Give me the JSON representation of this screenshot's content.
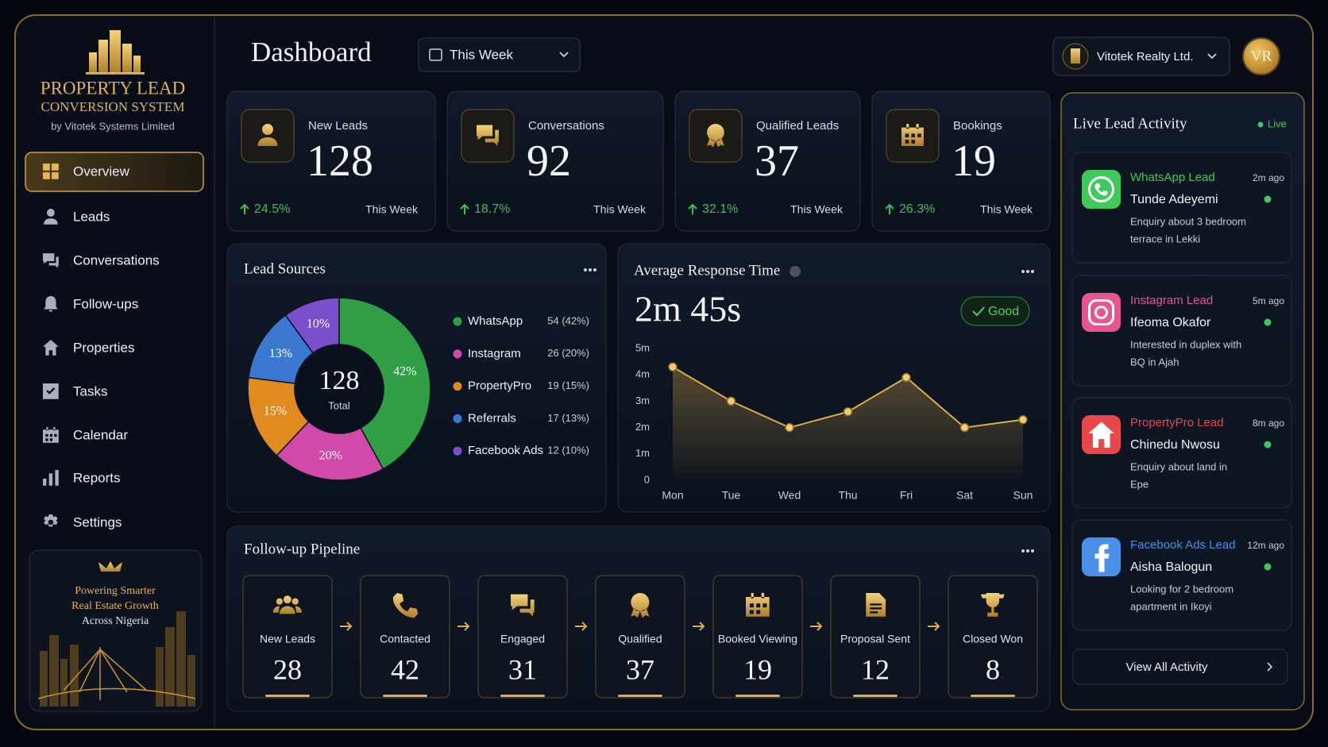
{
  "sidebar": {
    "brand": {
      "title": "PROPERTY LEAD",
      "subtitle": "CONVERSION SYSTEM",
      "byline": "by Vitotek Systems Limited"
    },
    "nav": [
      "Overview",
      "Leads",
      "Conversations",
      "Follow-ups",
      "Properties",
      "Tasks",
      "Calendar",
      "Reports",
      "Settings"
    ],
    "promo": [
      "Powering Smarter",
      "Real Estate Growth",
      "Across Nigeria"
    ]
  },
  "header": {
    "title": "Dashboard",
    "period": "This Week",
    "company": "Vitotek Realty Ltd.",
    "avatar": "VR"
  },
  "kpis": [
    {
      "label": "New Leads",
      "value": 128,
      "change": "24.5%",
      "period": "This Week"
    },
    {
      "label": "Conversations",
      "value": 92,
      "change": "18.7%",
      "period": "This Week"
    },
    {
      "label": "Qualified Leads",
      "value": 37,
      "change": "32.1%",
      "period": "This Week"
    },
    {
      "label": "Bookings",
      "value": 19,
      "change": "26.3%",
      "period": "This Week"
    }
  ],
  "chart_data": [
    {
      "type": "pie",
      "title": "Lead Sources",
      "categories": [
        "WhatsApp",
        "Instagram",
        "PropertyPro",
        "Referrals",
        "Facebook Ads"
      ],
      "values": [
        42,
        20,
        15,
        13,
        10
      ],
      "value_labels": [
        "42%",
        "20%",
        "15%",
        "13%",
        "10%"
      ],
      "legend_details": [
        "54 (42%)",
        "26 (20%)",
        "19 (15%)",
        "17 (13%)",
        "12 (10%)"
      ],
      "colors": [
        "#2f9e44",
        "#d14aa9",
        "#e08a1f",
        "#3b78d1",
        "#7b4fc9"
      ],
      "center_value": 128,
      "center_label": "Total"
    },
    {
      "type": "line",
      "title": "Average Response Time",
      "headline": "2m 45s",
      "status": "Good",
      "categories": [
        "Mon",
        "Tue",
        "Wed",
        "Thu",
        "Fri",
        "Sat",
        "Sun"
      ],
      "values": [
        4.3,
        3.0,
        2.0,
        2.6,
        3.9,
        2.0,
        2.3
      ],
      "color": "#e0ac45",
      "ylim": [
        0,
        5
      ],
      "yticks": [
        0,
        {
          "value": 1,
          "label": "1m"
        },
        {
          "value": 2,
          "label": "2m"
        },
        {
          "value": 3,
          "label": "3m"
        },
        {
          "value": 4,
          "label": "4m"
        },
        {
          "value": 5,
          "label": "5m"
        }
      ],
      "grid": false
    }
  ],
  "pipeline": {
    "title": "Follow-up Pipeline",
    "stages": [
      {
        "label": "New Leads",
        "value": 28
      },
      {
        "label": "Contacted",
        "value": 42
      },
      {
        "label": "Engaged",
        "value": 31
      },
      {
        "label": "Qualified",
        "value": 37
      },
      {
        "label": "Booked Viewing",
        "value": 19
      },
      {
        "label": "Proposal Sent",
        "value": 12
      },
      {
        "label": "Closed Won",
        "value": 8
      }
    ]
  },
  "activity": {
    "title": "Live Lead Activity",
    "status": "Live",
    "items": [
      {
        "source": "WhatsApp Lead",
        "time": "2m ago",
        "name": "Tunde Adeyemi",
        "message": [
          "Enquiry about 3 bedroom",
          "terrace in Lekki"
        ],
        "color": "#3fc95a"
      },
      {
        "source": "Instagram Lead",
        "time": "5m ago",
        "name": "Ifeoma Okafor",
        "message": [
          "Interested in duplex with",
          "BQ in Ajah"
        ],
        "color": "#e8548c"
      },
      {
        "source": "PropertyPro Lead",
        "time": "8m ago",
        "name": "Chinedu Nwosu",
        "message": [
          "Enquiry about land in",
          "Epe"
        ],
        "color": "#e8484a"
      },
      {
        "source": "Facebook Ads Lead",
        "time": "12m ago",
        "name": "Aisha Balogun",
        "message": [
          "Looking for 2 bedroom",
          "apartment in Ikoyi"
        ],
        "color": "#4a8fe8"
      }
    ],
    "footer": "View All Activity"
  }
}
